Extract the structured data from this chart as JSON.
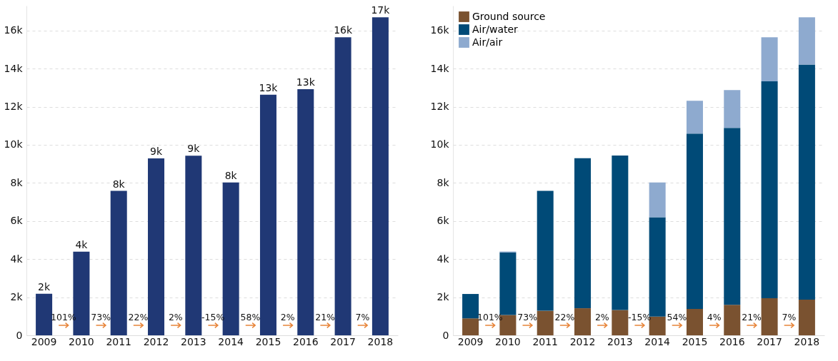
{
  "chart_data": [
    {
      "type": "bar",
      "categories": [
        "2009",
        "2010",
        "2011",
        "2012",
        "2013",
        "2014",
        "2015",
        "2016",
        "2017",
        "2018"
      ],
      "values": [
        2180,
        4390,
        7580,
        9290,
        9430,
        8020,
        12630,
        12920,
        15640,
        16690
      ],
      "color": "#203875",
      "value_labels": [
        "2k",
        "4k",
        "8k",
        "9k",
        "9k",
        "8k",
        "13k",
        "13k",
        "16k",
        "17k"
      ],
      "ylim": [
        0,
        17300
      ],
      "yticks": [
        0,
        {
          "value": 2000,
          "label": "2k"
        },
        {
          "value": 4000,
          "label": "4k"
        },
        {
          "value": 6000,
          "label": "6k"
        },
        {
          "value": 8000,
          "label": "8k"
        },
        {
          "value": 10000,
          "label": "10k"
        },
        {
          "value": 12000,
          "label": "12k"
        },
        {
          "value": 14000,
          "label": "14k"
        },
        {
          "value": 16000,
          "label": "16k"
        }
      ],
      "grid": "y",
      "annotations": [
        "101%",
        "73%",
        "22%",
        "2%",
        "-15%",
        "58%",
        "2%",
        "21%",
        "7%"
      ]
    },
    {
      "type": "bar",
      "stacked": true,
      "legend": "top left",
      "categories": [
        "2009",
        "2010",
        "2011",
        "2012",
        "2013",
        "2014",
        "2015",
        "2016",
        "2017",
        "2018"
      ],
      "series": [
        {
          "name": "Ground source",
          "color": "#7a5230",
          "values": [
            890,
            1070,
            1290,
            1420,
            1330,
            980,
            1390,
            1600,
            1950,
            1870
          ]
        },
        {
          "name": "Air/water",
          "color": "#004a77",
          "values": [
            1280,
            3280,
            6290,
            7880,
            8110,
            5220,
            9200,
            9290,
            11380,
            12340
          ]
        },
        {
          "name": "Air/air",
          "color": "#8eaacf",
          "values": [
            0,
            50,
            0,
            0,
            0,
            1820,
            1720,
            1980,
            2310,
            2480
          ]
        }
      ],
      "ylim": [
        0,
        17300
      ],
      "yticks": [
        0,
        {
          "value": 2000,
          "label": "2k"
        },
        {
          "value": 4000,
          "label": "4k"
        },
        {
          "value": 6000,
          "label": "6k"
        },
        {
          "value": 8000,
          "label": "8k"
        },
        {
          "value": 10000,
          "label": "10k"
        },
        {
          "value": 12000,
          "label": "12k"
        },
        {
          "value": 14000,
          "label": "14k"
        },
        {
          "value": 16000,
          "label": "16k"
        }
      ],
      "grid": "y",
      "annotations": [
        "101%",
        "73%",
        "22%",
        "2%",
        "-15%",
        "54%",
        "4%",
        "21%",
        "7%"
      ]
    }
  ]
}
